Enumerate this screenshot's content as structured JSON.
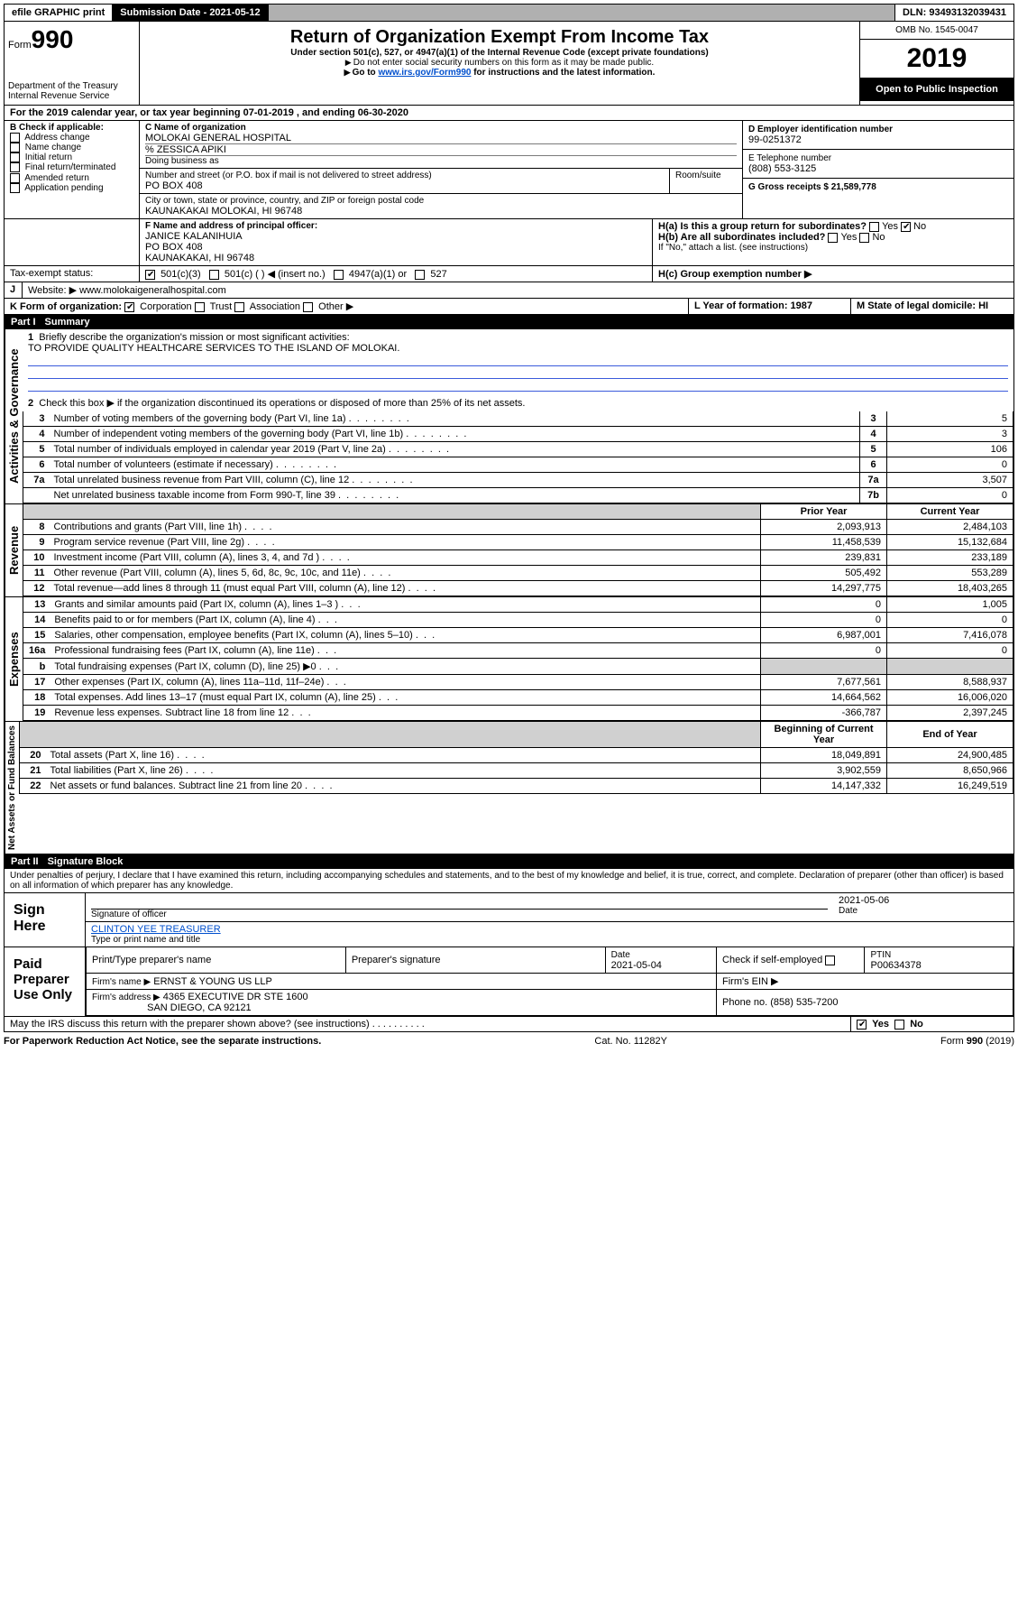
{
  "top": {
    "efile": "efile GRAPHIC print",
    "sub_label": "Submission Date - 2021-05-12",
    "dln": "DLN: 93493132039431"
  },
  "header": {
    "form_prefix": "Form",
    "form_no": "990",
    "dept": "Department of the Treasury\nInternal Revenue Service",
    "title": "Return of Organization Exempt From Income Tax",
    "subtitle": "Under section 501(c), 527, or 4947(a)(1) of the Internal Revenue Code (except private foundations)",
    "note1": "Do not enter social security numbers on this form as it may be made public.",
    "note2_prefix": "Go to ",
    "note2_link": "www.irs.gov/Form990",
    "note2_suffix": " for instructions and the latest information.",
    "omb": "OMB No. 1545-0047",
    "year": "2019",
    "inspect": "Open to Public Inspection"
  },
  "period": "For the 2019 calendar year, or tax year beginning 07-01-2019    , and ending 06-30-2020",
  "boxB": {
    "title": "B Check if applicable:",
    "opts": [
      "Address change",
      "Name change",
      "Initial return",
      "Final return/terminated",
      "Amended return",
      "Application pending"
    ]
  },
  "boxC": {
    "label": "C Name of organization",
    "name": "MOLOKAI GENERAL HOSPITAL",
    "care": "% ZESSICA APIKI",
    "dba_label": "Doing business as",
    "addr_label": "Number and street (or P.O. box if mail is not delivered to street address)",
    "room_label": "Room/suite",
    "addr": "PO BOX 408",
    "city_label": "City or town, state or province, country, and ZIP or foreign postal code",
    "city": "KAUNAKAKAI MOLOKAI, HI  96748"
  },
  "boxD": {
    "label": "D Employer identification number",
    "val": "99-0251372"
  },
  "boxE": {
    "label": "E Telephone number",
    "val": "(808) 553-3125"
  },
  "boxG": {
    "label": "G Gross receipts $ 21,589,778"
  },
  "boxF": {
    "label": "F Name and address of principal officer:",
    "name": "JANICE KALANIHUIA",
    "addr1": "PO BOX 408",
    "addr2": "KAUNAKAKAI, HI  96748"
  },
  "boxH": {
    "a": "H(a)  Is this a group return for subordinates?",
    "b": "H(b)  Are all subordinates included?",
    "b_note": "If \"No,\" attach a list. (see instructions)",
    "c": "H(c)  Group exemption number ▶",
    "yes": "Yes",
    "no": "No"
  },
  "taxexempt": {
    "label": "Tax-exempt status:",
    "o1": "501(c)(3)",
    "o2": "501(c) (   ) ◀ (insert no.)",
    "o3": "4947(a)(1) or",
    "o4": "527"
  },
  "boxJ": {
    "label": "J",
    "text": "Website: ▶  www.molokaigeneralhospital.com"
  },
  "boxK": {
    "label": "K Form of organization:",
    "opts": [
      "Corporation",
      "Trust",
      "Association",
      "Other ▶"
    ]
  },
  "boxL": {
    "label": "L Year of formation: 1987"
  },
  "boxM": {
    "label": "M State of legal domicile: HI"
  },
  "part1": {
    "label": "Part I",
    "title": "Summary",
    "sidebar1": "Activities & Governance",
    "sidebar2": "Revenue",
    "sidebar3": "Expenses",
    "sidebar4": "Net Assets or Fund Balances",
    "line1": "Briefly describe the organization's mission or most significant activities:",
    "mission": "TO PROVIDE QUALITY HEALTHCARE SERVICES TO THE ISLAND OF MOLOKAI.",
    "line2": "Check this box ▶        if the organization discontinued its operations or disposed of more than 25% of its net assets.",
    "rows_ag": [
      {
        "n": "3",
        "t": "Number of voting members of the governing body (Part VI, line 1a)",
        "c": "3",
        "v": "5"
      },
      {
        "n": "4",
        "t": "Number of independent voting members of the governing body (Part VI, line 1b)",
        "c": "4",
        "v": "3"
      },
      {
        "n": "5",
        "t": "Total number of individuals employed in calendar year 2019 (Part V, line 2a)",
        "c": "5",
        "v": "106"
      },
      {
        "n": "6",
        "t": "Total number of volunteers (estimate if necessary)",
        "c": "6",
        "v": "0"
      },
      {
        "n": "7a",
        "t": "Total unrelated business revenue from Part VIII, column (C), line 12",
        "c": "7a",
        "v": "3,507"
      },
      {
        "n": "",
        "t": "Net unrelated business taxable income from Form 990-T, line 39",
        "c": "7b",
        "v": "0"
      },
      {
        "n": "b",
        "t": "",
        "c": "",
        "v": ""
      }
    ],
    "hdr_prior": "Prior Year",
    "hdr_curr": "Current Year",
    "hdr_beg": "Beginning of Current Year",
    "hdr_end": "End of Year",
    "rows_rev": [
      {
        "n": "8",
        "t": "Contributions and grants (Part VIII, line 1h)",
        "p": "2,093,913",
        "c": "2,484,103"
      },
      {
        "n": "9",
        "t": "Program service revenue (Part VIII, line 2g)",
        "p": "11,458,539",
        "c": "15,132,684"
      },
      {
        "n": "10",
        "t": "Investment income (Part VIII, column (A), lines 3, 4, and 7d )",
        "p": "239,831",
        "c": "233,189"
      },
      {
        "n": "11",
        "t": "Other revenue (Part VIII, column (A), lines 5, 6d, 8c, 9c, 10c, and 11e)",
        "p": "505,492",
        "c": "553,289"
      },
      {
        "n": "12",
        "t": "Total revenue—add lines 8 through 11 (must equal Part VIII, column (A), line 12)",
        "p": "14,297,775",
        "c": "18,403,265"
      }
    ],
    "rows_exp": [
      {
        "n": "13",
        "t": "Grants and similar amounts paid (Part IX, column (A), lines 1–3 )",
        "p": "0",
        "c": "1,005"
      },
      {
        "n": "14",
        "t": "Benefits paid to or for members (Part IX, column (A), line 4)",
        "p": "0",
        "c": "0"
      },
      {
        "n": "15",
        "t": "Salaries, other compensation, employee benefits (Part IX, column (A), lines 5–10)",
        "p": "6,987,001",
        "c": "7,416,078"
      },
      {
        "n": "16a",
        "t": "Professional fundraising fees (Part IX, column (A), line 11e)",
        "p": "0",
        "c": "0"
      },
      {
        "n": "b",
        "t": "Total fundraising expenses (Part IX, column (D), line 25) ▶0",
        "p": "",
        "c": ""
      },
      {
        "n": "17",
        "t": "Other expenses (Part IX, column (A), lines 11a–11d, 11f–24e)",
        "p": "7,677,561",
        "c": "8,588,937"
      },
      {
        "n": "18",
        "t": "Total expenses. Add lines 13–17 (must equal Part IX, column (A), line 25)",
        "p": "14,664,562",
        "c": "16,006,020"
      },
      {
        "n": "19",
        "t": "Revenue less expenses. Subtract line 18 from line 12",
        "p": "-366,787",
        "c": "2,397,245"
      }
    ],
    "rows_net": [
      {
        "n": "20",
        "t": "Total assets (Part X, line 16)",
        "p": "18,049,891",
        "c": "24,900,485"
      },
      {
        "n": "21",
        "t": "Total liabilities (Part X, line 26)",
        "p": "3,902,559",
        "c": "8,650,966"
      },
      {
        "n": "22",
        "t": "Net assets or fund balances. Subtract line 21 from line 20",
        "p": "14,147,332",
        "c": "16,249,519"
      }
    ]
  },
  "part2": {
    "label": "Part II",
    "title": "Signature Block",
    "perjury": "Under penalties of perjury, I declare that I have examined this return, including accompanying schedules and statements, and to the best of my knowledge and belief, it is true, correct, and complete. Declaration of preparer (other than officer) is based on all information of which preparer has any knowledge.",
    "sign_here": "Sign Here",
    "sig_officer": "Signature of officer",
    "sig_date": "2021-05-06",
    "sig_date_label": "Date",
    "sig_name": "CLINTON YEE TREASURER",
    "sig_name_label": "Type or print name and title",
    "paid_label": "Paid Preparer Use Only",
    "prep_name_label": "Print/Type preparer's name",
    "prep_sig_label": "Preparer's signature",
    "prep_date_label": "Date",
    "prep_date": "2021-05-04",
    "prep_check_label": "Check         if self-employed",
    "ptin_label": "PTIN",
    "ptin": "P00634378",
    "firm_name_label": "Firm's name     ▶",
    "firm_name": "ERNST & YOUNG US LLP",
    "firm_ein_label": "Firm's EIN ▶",
    "firm_addr_label": "Firm's address ▶",
    "firm_addr1": "4365 EXECUTIVE DR STE 1600",
    "firm_addr2": "SAN DIEGO, CA  92121",
    "phone_label": "Phone no. (858) 535-7200",
    "discuss": "May the IRS discuss this return with the preparer shown above? (see instructions)",
    "yes": "Yes",
    "no": "No"
  },
  "footer": {
    "left": "For Paperwork Reduction Act Notice, see the separate instructions.",
    "mid": "Cat. No. 11282Y",
    "right": "Form 990 (2019)"
  }
}
